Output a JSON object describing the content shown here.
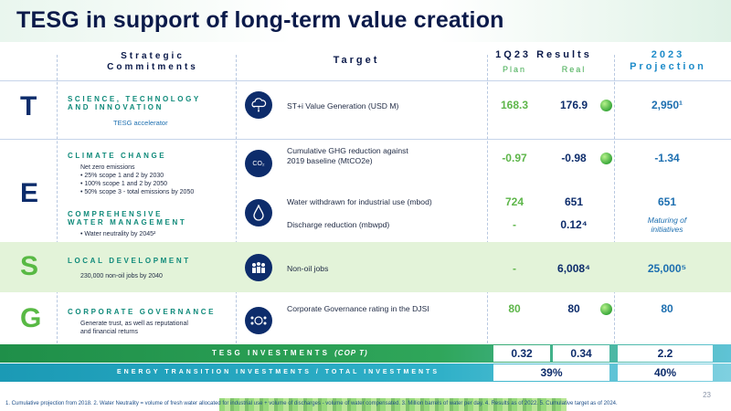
{
  "title": "TESG in support of long-term value creation",
  "headers": {
    "strategic_line1": "Strategic",
    "strategic_line2": "Commitments",
    "target": "Target",
    "results": "1Q23 Results",
    "plan": "Plan",
    "real": "Real",
    "proj_line1": "2023",
    "proj_line2": "Projection"
  },
  "letters": {
    "t": "T",
    "e": "E",
    "s": "S",
    "g": "G"
  },
  "rows": {
    "t": {
      "cap_line1": "SCIENCE, TECHNOLOGY",
      "cap_line2": "AND INNOVATION",
      "sub": "TESG accelerator",
      "target": "ST+i Value Generation (USD M)",
      "plan": "168.3",
      "real": "176.9",
      "proj": "2,950¹"
    },
    "e1": {
      "cap": "CLIMATE CHANGE",
      "sub0": "Net zero emissions",
      "sub1": "• 25% scope 1 and 2 by 2030",
      "sub2": "• 100% scope 1 and 2 by 2050",
      "sub3": "• 50% scope 3 - total emissions by 2050",
      "target_line1": "Cumulative GHG reduction against",
      "target_line2": "2019 baseline (MtCO2e)",
      "icon_text": "CO₂",
      "plan": "-0.97",
      "real": "-0.98",
      "proj": "-1.34"
    },
    "e2": {
      "cap_line1": "COMPREHENSIVE",
      "cap_line2": "WATER MANAGEMENT",
      "sub": "• Water neutrality by 2045²",
      "target_a": "Water withdrawn for industrial use (mbod)",
      "target_b": "Discharge reduction (mbwpd)",
      "plan_a": "724",
      "real_a": "651",
      "proj_a": "651",
      "plan_b": "-",
      "real_b": "0.12⁴",
      "proj_b_line1": "Maturing of",
      "proj_b_line2": "initiatives"
    },
    "s": {
      "cap": "LOCAL DEVELOPMENT",
      "sub": "230,000 non-oil jobs by 2040",
      "target": "Non-oil jobs",
      "plan": "-",
      "real": "6,008⁴",
      "proj": "25,000⁵"
    },
    "g": {
      "cap": "CORPORATE GOVERNANCE",
      "sub_line1": "Generate trust, as well as reputational",
      "sub_line2": "and financial returns",
      "target": "Corporate Governance rating in the DJSI",
      "plan": "80",
      "real": "80",
      "proj": "80"
    }
  },
  "investments": {
    "tesg_label": "TESG INVESTMENTS",
    "tesg_unit": "(COP T)",
    "tesg_plan": "0.32",
    "tesg_real": "0.34",
    "tesg_proj": "2.2",
    "energy_label": "ENERGY TRANSITION INVESTMENTS / TOTAL INVESTMENTS",
    "energy_real": "39%",
    "energy_proj": "40%"
  },
  "footnote": "1. Cumulative projection from 2018. 2. Water Neutrality = volume of fresh water allocated for industrial use + volume of discharges - volume of water compensated. 3. Million barrels of water per day. 4. Results as of 2022. 5. Cumulative target as of 2024.",
  "page_number": "23",
  "colors": {
    "navy": "#0d2c6b",
    "green": "#5eb64a",
    "blue": "#1d6fb0",
    "teal": "#0f8a7a"
  }
}
